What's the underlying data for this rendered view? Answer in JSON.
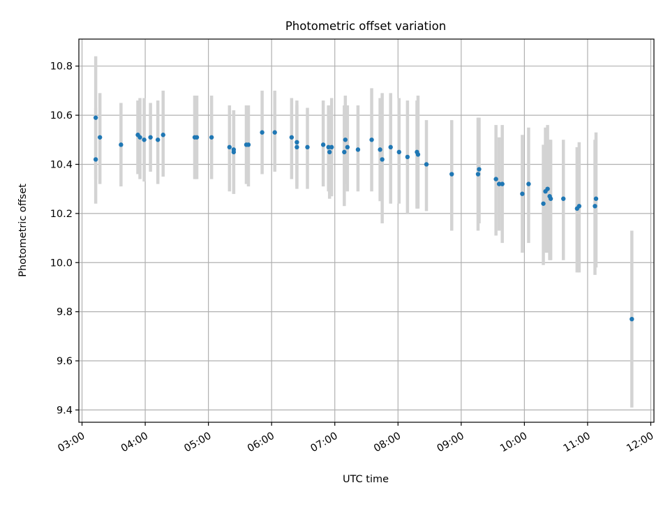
{
  "chart_data": {
    "type": "scatter",
    "title": "Photometric offset variation",
    "xlabel": "UTC time",
    "ylabel": "Photometric offset",
    "x_axis_type": "time",
    "xlim": [
      "02:57",
      "12:03"
    ],
    "ylim": [
      9.35,
      10.91
    ],
    "x_ticks": [
      "03:00",
      "04:00",
      "05:00",
      "06:00",
      "07:00",
      "08:00",
      "09:00",
      "10:00",
      "11:00",
      "12:00"
    ],
    "y_ticks": [
      "9.4",
      "9.6",
      "9.8",
      "10.0",
      "10.2",
      "10.4",
      "10.6",
      "10.8"
    ],
    "grid": true,
    "colors": {
      "marker": "#1f77b4",
      "error_bar": "#d3d3d3",
      "grid": "#b0b0b0"
    },
    "series": [
      {
        "x": [
          "03:13",
          "03:13",
          "03:17",
          "03:37",
          "03:53",
          "03:55",
          "03:59",
          "04:05",
          "04:12",
          "04:17",
          "04:47",
          "04:49",
          "05:03",
          "05:20",
          "05:24",
          "05:24",
          "05:36",
          "05:38",
          "05:51",
          "06:03",
          "06:19",
          "06:24",
          "06:24",
          "06:34",
          "06:49",
          "06:54",
          "06:55",
          "06:57",
          "07:09",
          "07:10",
          "07:12",
          "07:22",
          "07:35",
          "07:43",
          "07:45",
          "07:53",
          "08:01",
          "08:09",
          "08:18",
          "08:19",
          "08:27",
          "08:51",
          "09:16",
          "09:17",
          "09:33",
          "09:36",
          "09:39",
          "09:58",
          "10:04",
          "10:18",
          "10:20",
          "10:22",
          "10:24",
          "10:25",
          "10:37",
          "10:50",
          "10:52",
          "11:07",
          "11:08",
          "11:42"
        ],
        "y": [
          10.59,
          10.42,
          10.51,
          10.48,
          10.52,
          10.51,
          10.5,
          10.51,
          10.5,
          10.52,
          10.51,
          10.51,
          10.51,
          10.47,
          10.45,
          10.46,
          10.48,
          10.48,
          10.53,
          10.53,
          10.51,
          10.49,
          10.47,
          10.47,
          10.48,
          10.47,
          10.45,
          10.47,
          10.45,
          10.5,
          10.47,
          10.46,
          10.5,
          10.46,
          10.42,
          10.47,
          10.45,
          10.43,
          10.45,
          10.44,
          10.4,
          10.36,
          10.36,
          10.38,
          10.34,
          10.32,
          10.32,
          10.28,
          10.32,
          10.24,
          10.29,
          10.3,
          10.27,
          10.26,
          10.26,
          10.22,
          10.23,
          10.23,
          10.26,
          9.77
        ],
        "err_low": [
          10.34,
          10.24,
          10.32,
          10.31,
          10.36,
          10.34,
          10.33,
          10.37,
          10.32,
          10.35,
          10.34,
          10.34,
          10.34,
          10.29,
          10.28,
          10.28,
          10.32,
          10.31,
          10.36,
          10.37,
          10.34,
          10.3,
          10.31,
          10.3,
          10.31,
          10.29,
          10.26,
          10.27,
          10.23,
          10.32,
          10.29,
          10.29,
          10.29,
          10.25,
          10.16,
          10.24,
          10.24,
          10.2,
          10.22,
          10.22,
          10.21,
          10.13,
          10.13,
          10.16,
          10.11,
          10.13,
          10.08,
          10.04,
          10.08,
          9.99,
          10.04,
          10.04,
          10.01,
          10.01,
          10.01,
          9.96,
          9.96,
          9.95,
          9.98,
          9.41
        ],
        "err_high": [
          10.84,
          10.63,
          10.69,
          10.65,
          10.66,
          10.67,
          10.67,
          10.65,
          10.66,
          10.7,
          10.68,
          10.68,
          10.68,
          10.64,
          10.62,
          10.62,
          10.64,
          10.64,
          10.7,
          10.7,
          10.67,
          10.66,
          10.64,
          10.63,
          10.66,
          10.64,
          10.62,
          10.67,
          10.64,
          10.68,
          10.64,
          10.64,
          10.71,
          10.67,
          10.69,
          10.69,
          10.67,
          10.66,
          10.66,
          10.68,
          10.58,
          10.58,
          10.59,
          10.59,
          10.56,
          10.51,
          10.56,
          10.52,
          10.55,
          10.48,
          10.55,
          10.56,
          10.5,
          10.5,
          10.5,
          10.47,
          10.49,
          10.5,
          10.53,
          10.13
        ]
      }
    ]
  }
}
